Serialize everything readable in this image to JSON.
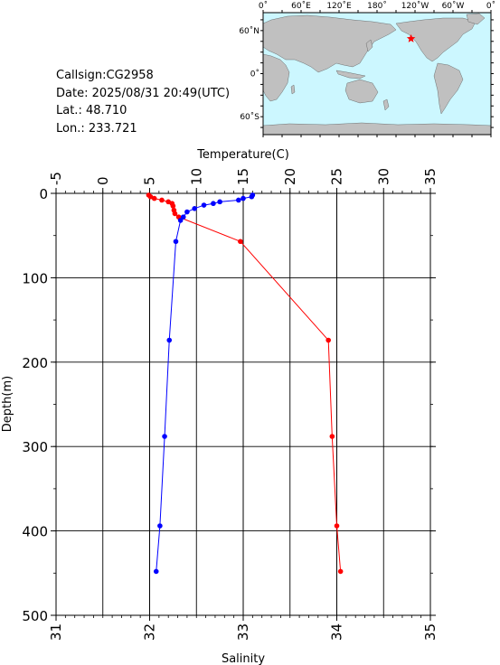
{
  "info": {
    "callsign": "Callsign:CG2958",
    "date": "Date:  2025/08/31 20:49(UTC)",
    "lat": "Lat.:   48.710",
    "lon": "Lon.:  233.721"
  },
  "map": {
    "top_labels": [
      "0˚",
      "60˚E",
      "120˚E",
      "180˚",
      "120˚W",
      "60˚W",
      "0˚"
    ],
    "left_labels": [
      "60˚N",
      "0˚",
      "60˚S"
    ],
    "ocean_color": "#ccf7ff",
    "land_color": "#c0c0c0",
    "marker_color": "#ff0000",
    "marker_icon": "star-icon",
    "marker": {
      "lon": 233.721,
      "lat": 48.71
    }
  },
  "chart_data": {
    "type": "line",
    "ylabel": "Depth(m)",
    "ylim": [
      0,
      500
    ],
    "y_ticks": [
      0,
      100,
      200,
      300,
      400,
      500
    ],
    "y_reversed": true,
    "top_axis": {
      "label": "Temperature(C)",
      "range": [
        -5,
        35
      ],
      "ticks": [
        -5,
        0,
        5,
        10,
        15,
        20,
        25,
        30,
        35
      ]
    },
    "bottom_axis": {
      "label": "Salinity",
      "range": [
        31,
        35
      ],
      "ticks": [
        31,
        32,
        33,
        34,
        35
      ]
    },
    "grid": true,
    "series": [
      {
        "variable": "temperature",
        "axis": "top",
        "color": "#ff0000",
        "points": [
          {
            "depth": 2,
            "value": 4.9
          },
          {
            "depth": 4,
            "value": 5.1
          },
          {
            "depth": 6,
            "value": 5.5
          },
          {
            "depth": 8,
            "value": 6.3
          },
          {
            "depth": 10,
            "value": 7.0
          },
          {
            "depth": 12,
            "value": 7.4
          },
          {
            "depth": 15,
            "value": 7.5
          },
          {
            "depth": 20,
            "value": 7.6
          },
          {
            "depth": 24,
            "value": 7.7
          },
          {
            "depth": 28,
            "value": 8.1
          },
          {
            "depth": 57,
            "value": 14.7
          },
          {
            "depth": 174,
            "value": 24.1
          },
          {
            "depth": 288,
            "value": 24.5
          },
          {
            "depth": 394,
            "value": 25.0
          },
          {
            "depth": 448,
            "value": 25.4
          }
        ]
      },
      {
        "variable": "salinity",
        "axis": "bottom",
        "color": "#0000ff",
        "points": [
          {
            "depth": 2,
            "value": 33.1
          },
          {
            "depth": 4,
            "value": 33.09
          },
          {
            "depth": 6,
            "value": 33.0
          },
          {
            "depth": 8,
            "value": 32.95
          },
          {
            "depth": 10,
            "value": 32.75
          },
          {
            "depth": 12,
            "value": 32.68
          },
          {
            "depth": 14,
            "value": 32.58
          },
          {
            "depth": 18,
            "value": 32.48
          },
          {
            "depth": 22,
            "value": 32.4
          },
          {
            "depth": 28,
            "value": 32.36
          },
          {
            "depth": 32,
            "value": 32.33
          },
          {
            "depth": 57,
            "value": 32.28
          },
          {
            "depth": 174,
            "value": 32.21
          },
          {
            "depth": 288,
            "value": 32.16
          },
          {
            "depth": 394,
            "value": 32.11
          },
          {
            "depth": 448,
            "value": 32.07
          }
        ]
      }
    ]
  }
}
